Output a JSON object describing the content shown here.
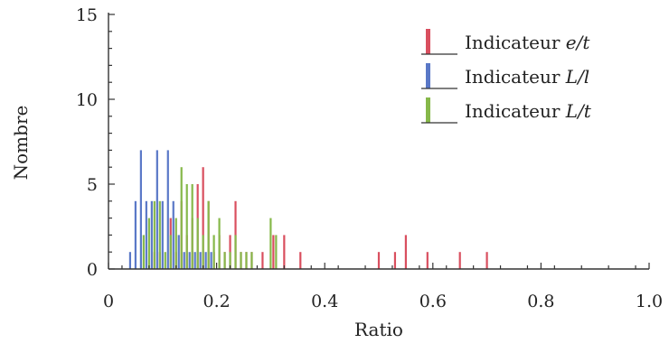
{
  "chart_data": {
    "type": "bar",
    "title": "",
    "xlabel": "Ratio",
    "ylabel": "Nombre",
    "xlim": [
      0,
      1
    ],
    "ylim": [
      0,
      15
    ],
    "x_ticks": [
      "0",
      "0.2",
      "0.4",
      "0.6",
      "0.8",
      "1.0"
    ],
    "y_ticks": [
      "0",
      "5",
      "10",
      "15"
    ],
    "grid": false,
    "legend_position": "top-right",
    "legend_prefix": "Indicateur",
    "series": [
      {
        "name": "e/t",
        "legend_var": "e/t",
        "color": "#d94f5f",
        "points": [
          {
            "x": 0.085,
            "y": 1
          },
          {
            "x": 0.095,
            "y": 1
          },
          {
            "x": 0.115,
            "y": 3
          },
          {
            "x": 0.125,
            "y": 1
          },
          {
            "x": 0.135,
            "y": 4
          },
          {
            "x": 0.145,
            "y": 2
          },
          {
            "x": 0.155,
            "y": 3
          },
          {
            "x": 0.165,
            "y": 5
          },
          {
            "x": 0.175,
            "y": 6
          },
          {
            "x": 0.185,
            "y": 4
          },
          {
            "x": 0.195,
            "y": 1
          },
          {
            "x": 0.205,
            "y": 2
          },
          {
            "x": 0.215,
            "y": 1
          },
          {
            "x": 0.225,
            "y": 2
          },
          {
            "x": 0.235,
            "y": 4
          },
          {
            "x": 0.245,
            "y": 1
          },
          {
            "x": 0.255,
            "y": 1
          },
          {
            "x": 0.265,
            "y": 1
          },
          {
            "x": 0.285,
            "y": 1
          },
          {
            "x": 0.305,
            "y": 2
          },
          {
            "x": 0.325,
            "y": 2
          },
          {
            "x": 0.355,
            "y": 1
          },
          {
            "x": 0.5,
            "y": 1
          },
          {
            "x": 0.53,
            "y": 1
          },
          {
            "x": 0.55,
            "y": 2
          },
          {
            "x": 0.59,
            "y": 1
          },
          {
            "x": 0.65,
            "y": 1
          },
          {
            "x": 0.7,
            "y": 1
          }
        ]
      },
      {
        "name": "L/l",
        "legend_var": "L/l",
        "color": "#5a78c7",
        "points": [
          {
            "x": 0.04,
            "y": 1
          },
          {
            "x": 0.05,
            "y": 4
          },
          {
            "x": 0.06,
            "y": 7
          },
          {
            "x": 0.07,
            "y": 4
          },
          {
            "x": 0.08,
            "y": 4
          },
          {
            "x": 0.09,
            "y": 7
          },
          {
            "x": 0.1,
            "y": 4
          },
          {
            "x": 0.11,
            "y": 7
          },
          {
            "x": 0.12,
            "y": 4
          },
          {
            "x": 0.13,
            "y": 2
          },
          {
            "x": 0.14,
            "y": 1
          },
          {
            "x": 0.15,
            "y": 1
          },
          {
            "x": 0.16,
            "y": 1
          },
          {
            "x": 0.17,
            "y": 1
          },
          {
            "x": 0.18,
            "y": 1
          },
          {
            "x": 0.19,
            "y": 1
          }
        ]
      },
      {
        "name": "L/t",
        "legend_var": "L/t",
        "color": "#86b84a",
        "points": [
          {
            "x": 0.065,
            "y": 2
          },
          {
            "x": 0.075,
            "y": 3
          },
          {
            "x": 0.085,
            "y": 4
          },
          {
            "x": 0.095,
            "y": 4
          },
          {
            "x": 0.105,
            "y": 1
          },
          {
            "x": 0.115,
            "y": 2
          },
          {
            "x": 0.125,
            "y": 3
          },
          {
            "x": 0.135,
            "y": 6
          },
          {
            "x": 0.145,
            "y": 5
          },
          {
            "x": 0.155,
            "y": 5
          },
          {
            "x": 0.165,
            "y": 3
          },
          {
            "x": 0.175,
            "y": 2
          },
          {
            "x": 0.185,
            "y": 4
          },
          {
            "x": 0.195,
            "y": 2
          },
          {
            "x": 0.205,
            "y": 3
          },
          {
            "x": 0.215,
            "y": 1
          },
          {
            "x": 0.225,
            "y": 1
          },
          {
            "x": 0.235,
            "y": 2
          },
          {
            "x": 0.245,
            "y": 1
          },
          {
            "x": 0.255,
            "y": 1
          },
          {
            "x": 0.265,
            "y": 1
          },
          {
            "x": 0.3,
            "y": 3
          },
          {
            "x": 0.31,
            "y": 2
          }
        ]
      }
    ]
  }
}
